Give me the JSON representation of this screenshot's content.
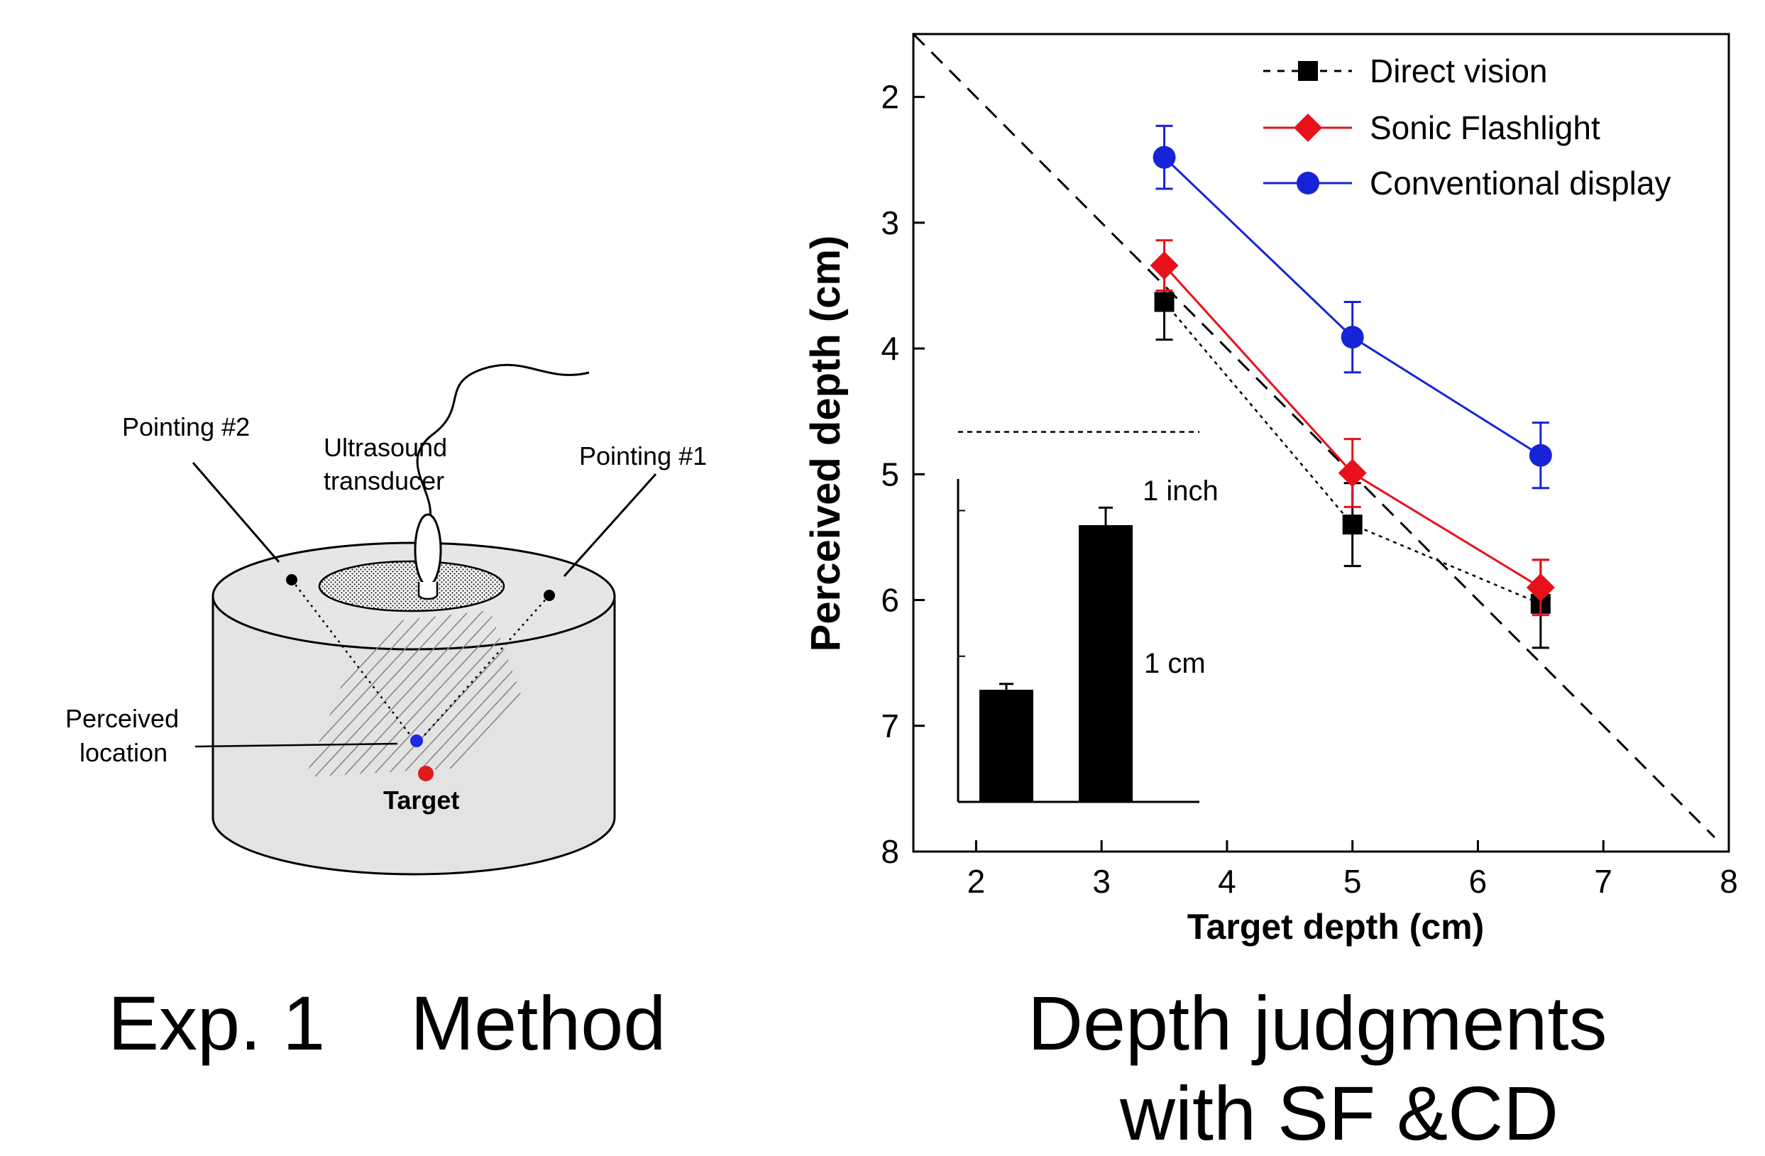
{
  "method_panel": {
    "labels": {
      "pointing2": "Pointing #2",
      "transducer_line1": "Ultrasound",
      "transducer_line2": "transducer",
      "pointing1": "Pointing #1",
      "perceived_line1": "Perceived",
      "perceived_line2": "location",
      "target": "Target"
    },
    "colors": {
      "target_dot": "#e31a1c",
      "perceived_dot": "#1f2be0",
      "cylinder": "#e3e3e3"
    }
  },
  "captions": {
    "left": "Exp. 1    Method",
    "right_line1": "Depth judgments",
    "right_line2": "with SF &CD"
  },
  "chart_data": {
    "type": "line",
    "xlabel": "Target depth (cm)",
    "ylabel": "Perceived depth (cm)",
    "xlim": [
      1.5,
      8
    ],
    "ylim": [
      1.5,
      8
    ],
    "y_inverted": true,
    "xticks": [
      2,
      3,
      4,
      5,
      6,
      7,
      8
    ],
    "yticks": [
      2,
      3,
      4,
      5,
      6,
      7,
      8
    ],
    "legend_position": "top-right",
    "reference_line": {
      "style": "dashed",
      "points": [
        [
          1.5,
          1.5
        ],
        [
          8,
          8
        ]
      ]
    },
    "series": [
      {
        "name": "Direct vision",
        "color": "#000000",
        "marker": "square",
        "line": "dotted",
        "x": [
          3.5,
          5,
          6.5
        ],
        "y": [
          3.63,
          5.4,
          6.03
        ],
        "err": [
          0.3,
          0.33,
          0.35
        ]
      },
      {
        "name": "Sonic Flashlight",
        "color": "#e8101b",
        "marker": "diamond",
        "line": "solid",
        "x": [
          3.5,
          5,
          6.5
        ],
        "y": [
          3.34,
          4.99,
          5.9
        ],
        "err": [
          0.2,
          0.27,
          0.22
        ]
      },
      {
        "name": "Conventional display",
        "color": "#1723d6",
        "marker": "circle",
        "line": "solid",
        "x": [
          3.5,
          5,
          6.5
        ],
        "y": [
          2.48,
          3.91,
          4.85
        ],
        "err": [
          0.25,
          0.28,
          0.26
        ]
      }
    ],
    "inset": {
      "type": "bar",
      "bars": [
        {
          "value": 0.77,
          "err": 0.04
        },
        {
          "value": 1.9,
          "err": 0.12
        }
      ],
      "annotations": {
        "reference": "1 inch",
        "scale": "1 cm"
      },
      "reference_value": 2.54
    }
  }
}
